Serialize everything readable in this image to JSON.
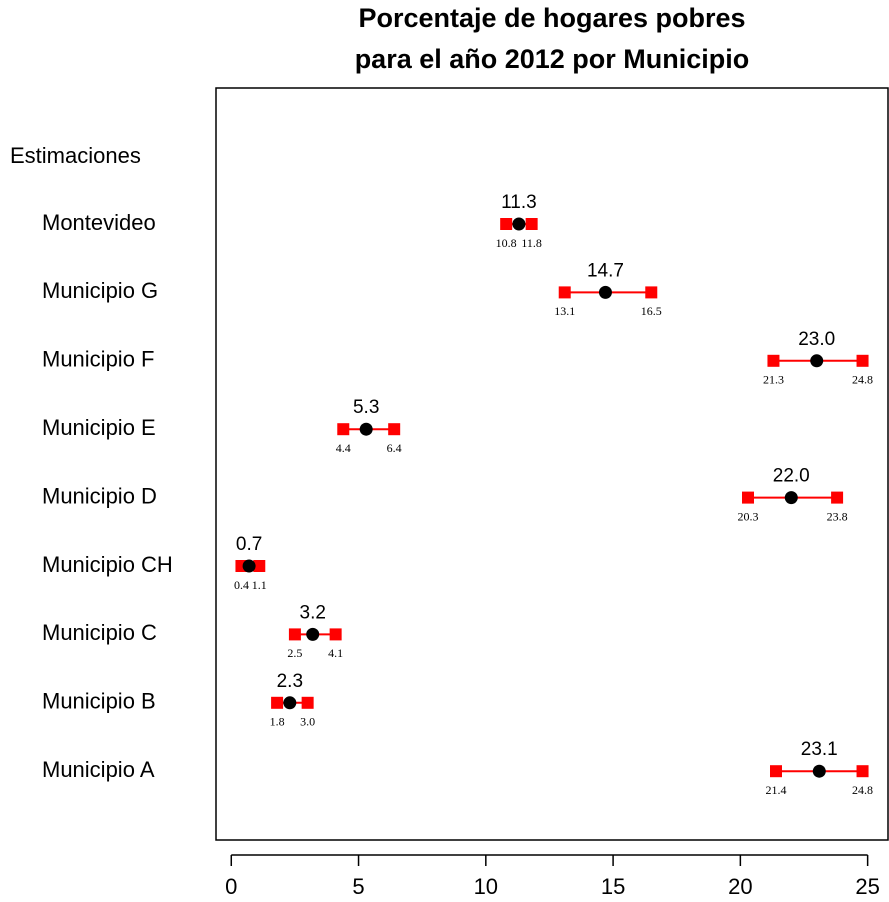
{
  "chart_data": {
    "type": "interval-dot",
    "title": [
      "Porcentaje de hogares pobres",
      "para el año 2012 por Municipio"
    ],
    "row_header": "Estimaciones",
    "categories": [
      "Montevideo",
      "Municipio G",
      "Municipio F",
      "Municipio E",
      "Municipio D",
      "Municipio CH",
      "Municipio C",
      "Municipio B",
      "Municipio A"
    ],
    "values": [
      11.3,
      14.7,
      23.0,
      5.3,
      22.0,
      0.7,
      3.2,
      2.3,
      23.1
    ],
    "value_labels": [
      "11.3",
      "14.7",
      "23.0",
      "5.3",
      "22.0",
      "0.7",
      "3.2",
      "2.3",
      "23.1"
    ],
    "lower": [
      10.8,
      13.1,
      21.3,
      4.4,
      20.3,
      0.4,
      2.5,
      1.8,
      21.4
    ],
    "lower_labels": [
      "10.8",
      "13.1",
      "21.3",
      "4.4",
      "20.3",
      "0.4",
      "2.5",
      "1.8",
      "21.4"
    ],
    "upper": [
      11.8,
      16.5,
      24.8,
      6.4,
      23.8,
      1.1,
      4.1,
      3.0,
      24.8
    ],
    "upper_labels": [
      "11.8",
      "16.5",
      "24.8",
      "6.4",
      "23.8",
      "1.1",
      "4.1",
      "3.0",
      "24.8"
    ],
    "point_color": "#000000",
    "interval_color": "#ff0000",
    "xlim": [
      -0.6,
      25.8
    ],
    "xticks": [
      0,
      5,
      10,
      15,
      20,
      25
    ]
  }
}
